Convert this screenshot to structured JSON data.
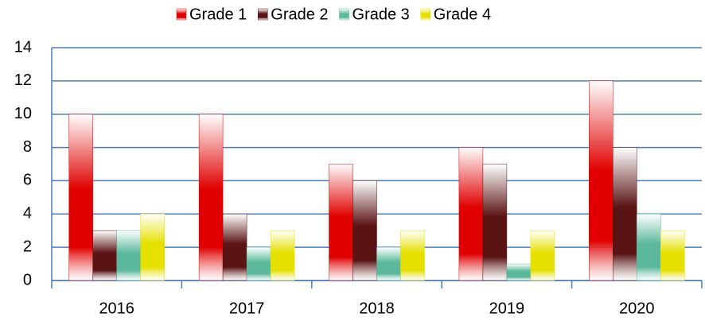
{
  "chart_data": {
    "type": "bar",
    "categories": [
      "2016",
      "2017",
      "2018",
      "2019",
      "2020"
    ],
    "series": [
      {
        "name": "Grade 1",
        "color": "#e00000",
        "values": [
          10,
          10,
          7,
          8,
          12
        ]
      },
      {
        "name": "Grade 2",
        "color": "#5a1414",
        "values": [
          3,
          4,
          6,
          7,
          8
        ]
      },
      {
        "name": "Grade 3",
        "color": "#5cb89c",
        "values": [
          3,
          2,
          2,
          1,
          4
        ]
      },
      {
        "name": "Grade 4",
        "color": "#e6e000",
        "values": [
          4,
          3,
          3,
          3,
          3
        ]
      }
    ],
    "ylim": [
      0,
      14
    ],
    "yticks": [
      0,
      2,
      4,
      6,
      8,
      10,
      12,
      14
    ],
    "grid": true,
    "legend": "top"
  }
}
